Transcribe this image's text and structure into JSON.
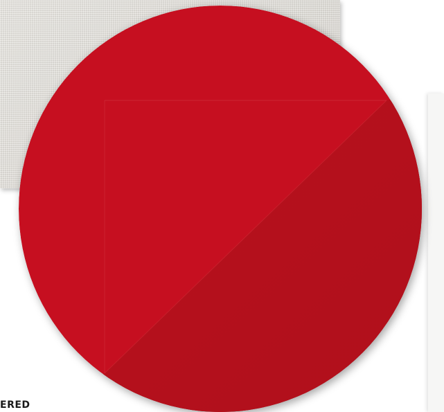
{
  "caption": {
    "text": "ERED"
  },
  "colors": {
    "disc_red": "#c60f20",
    "disc_red_dark": "#b4111c",
    "linen": "#e2e0db",
    "caption_text": "#1a1a1a"
  }
}
